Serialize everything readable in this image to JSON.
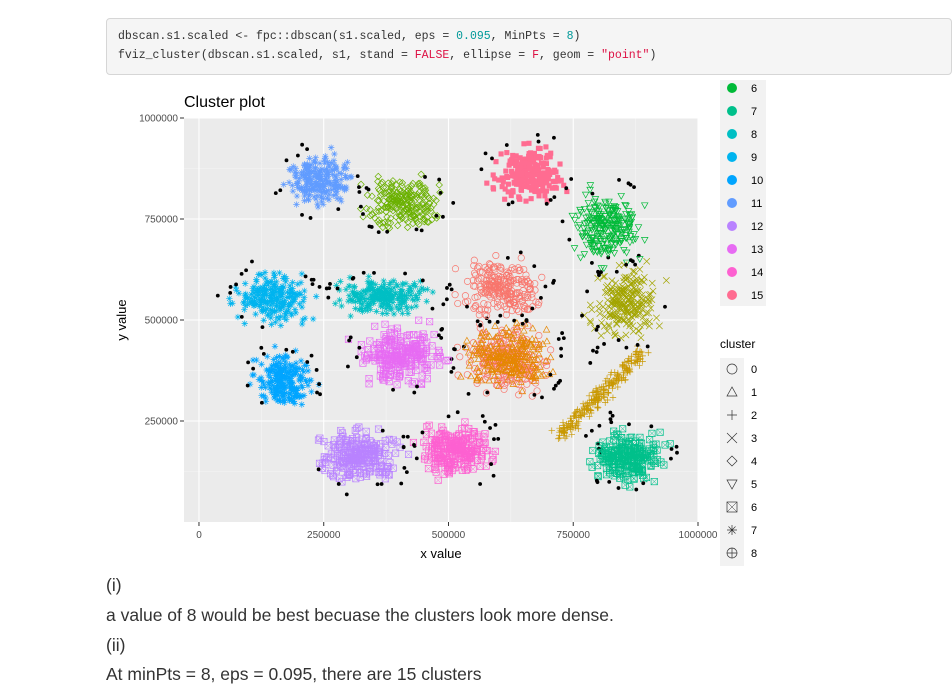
{
  "code": {
    "line1": {
      "a": "dbscan.s1.scaled <- fpc::dbscan(s1.scaled, eps = ",
      "eps": "0.095",
      "b": ", MinPts = ",
      "minpts": "8",
      "c": ")"
    },
    "line2": {
      "a": "fviz_cluster(dbscan.s1.scaled, s1, stand = ",
      "stand": "FALSE",
      "b": ", ellipse = ",
      "ellipse": "F",
      "c": ", geom = ",
      "geom": "\"point\"",
      "d": ")"
    }
  },
  "text": {
    "i_label": "(i)",
    "i_answer": "a value of 8 would be best becuase the clusters look more dense.",
    "ii_label": "(ii)",
    "ii_answer": "At minPts = 8, eps = 0.095, there are 15 clusters"
  },
  "chart_data": {
    "type": "scatter",
    "title": "Cluster plot",
    "xlabel": "x value",
    "ylabel": "y value",
    "xlim": [
      -30000,
      1000000
    ],
    "ylim": [
      0,
      1000000
    ],
    "x_ticks": [
      0,
      250000,
      500000,
      750000,
      1000000
    ],
    "x_tick_labels": [
      "0",
      "250000",
      "500000",
      "750000",
      "1000000"
    ],
    "y_ticks": [
      250000,
      500000,
      750000,
      1000000
    ],
    "y_tick_labels": [
      "250000",
      "500000",
      "750000",
      "1000000"
    ],
    "grid": true,
    "background": "#ebebeb",
    "legend_title": "cluster",
    "legend_color_labels": [
      "6",
      "7",
      "8",
      "9",
      "10",
      "11",
      "12",
      "13",
      "14",
      "15"
    ],
    "legend_color_values": [
      "#00BA38",
      "#00C08B",
      "#00BFC4",
      "#00B4EF",
      "#00A5FF",
      "#619CFF",
      "#B983FF",
      "#E76BF3",
      "#FD61D1",
      "#FF6C91"
    ],
    "legend_shape_labels": [
      "0",
      "1",
      "2",
      "3",
      "4",
      "5",
      "6",
      "7",
      "8"
    ],
    "legend_shape_names": [
      "circle-open",
      "triangle-open",
      "plus",
      "cross",
      "diamond-open",
      "triangle-down-open",
      "square-cross",
      "asterisk",
      "circle-plus"
    ],
    "noise_color": "#000000",
    "clusters": [
      {
        "id": 1,
        "center": [
          618000,
          400000
        ],
        "spread": [
          38000,
          35000
        ],
        "color": "#F8766D",
        "shape": "circle-open"
      },
      {
        "id": 2,
        "center": [
          618000,
          405000
        ],
        "spread": [
          40000,
          35000
        ],
        "color": "#E58700",
        "shape": "triangle-open"
      },
      {
        "id": 3,
        "center": [
          805000,
          315000
        ],
        "spread": [
          8000,
          48000
        ],
        "color": "#C99800",
        "shape": "plus"
      },
      {
        "id": 4,
        "center": [
          855000,
          545000
        ],
        "spread": [
          30000,
          38000
        ],
        "color": "#A3A500",
        "shape": "cross"
      },
      {
        "id": 5,
        "center": [
          408000,
          790000
        ],
        "spread": [
          32000,
          28000
        ],
        "color": "#6BB100",
        "shape": "diamond-open"
      },
      {
        "id": 6,
        "center": [
          820000,
          730000
        ],
        "spread": [
          30000,
          38000
        ],
        "color": "#00BA38",
        "shape": "triangle-down-open"
      },
      {
        "id": 7,
        "center": [
          858000,
          160000
        ],
        "spread": [
          32000,
          28000
        ],
        "color": "#00C08B",
        "shape": "square-cross"
      },
      {
        "id": 8,
        "center": [
          368000,
          560000
        ],
        "spread": [
          40000,
          20000
        ],
        "color": "#00BFC4",
        "shape": "asterisk"
      },
      {
        "id": 9,
        "center": [
          150000,
          555000
        ],
        "spread": [
          35000,
          30000
        ],
        "color": "#00B4EF",
        "shape": "asterisk"
      },
      {
        "id": 10,
        "center": [
          170000,
          350000
        ],
        "spread": [
          25000,
          30000
        ],
        "color": "#00A5FF",
        "shape": "asterisk"
      },
      {
        "id": 11,
        "center": [
          245000,
          845000
        ],
        "spread": [
          30000,
          30000
        ],
        "color": "#619CFF",
        "shape": "asterisk"
      },
      {
        "id": 12,
        "center": [
          320000,
          165000
        ],
        "spread": [
          38000,
          30000
        ],
        "color": "#B983FF",
        "shape": "square-cross"
      },
      {
        "id": 13,
        "center": [
          405000,
          410000
        ],
        "spread": [
          35000,
          30000
        ],
        "color": "#E76BF3",
        "shape": "square-cross"
      },
      {
        "id": 14,
        "center": [
          515000,
          180000
        ],
        "spread": [
          32000,
          30000
        ],
        "color": "#FD61D1",
        "shape": "square-cross"
      },
      {
        "id": 15,
        "center": [
          665000,
          865000
        ],
        "spread": [
          32000,
          30000
        ],
        "color": "#FF6C91",
        "shape": "square-filled"
      },
      {
        "id": 1.5,
        "center": [
          605000,
          578000
        ],
        "spread": [
          35000,
          30000
        ],
        "color": "#F8766D",
        "shape": "circle-open"
      }
    ]
  }
}
